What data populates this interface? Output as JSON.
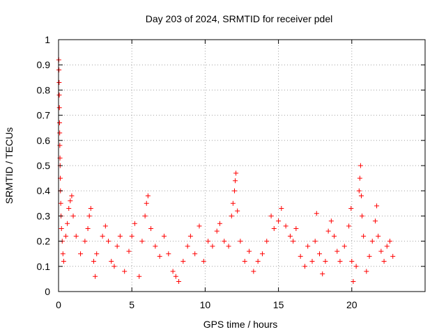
{
  "chart_data": {
    "type": "scatter",
    "title": "Day 203 of 2024, SRMTID for receiver pdel",
    "xlabel": "GPS time / hours",
    "ylabel": "SRMTID / TECUs",
    "xlim": [
      0,
      25
    ],
    "ylim": [
      0,
      1
    ],
    "xticks": [
      0,
      5,
      10,
      15,
      20
    ],
    "yticks": [
      0,
      0.1,
      0.2,
      0.3,
      0.4,
      0.5,
      0.6,
      0.7,
      0.8,
      0.9,
      1
    ],
    "xtick_labels": [
      "0",
      "5",
      "10",
      "15",
      "20"
    ],
    "ytick_labels": [
      "0",
      "0.1",
      "0.2",
      "0.3",
      "0.4",
      "0.5",
      "0.6",
      "0.7",
      "0.8",
      "0.9",
      "1"
    ],
    "grid": true,
    "marker": "+",
    "color": "#ff0000",
    "series": [
      {
        "name": "SRMTID",
        "points": [
          [
            0.02,
            0.92
          ],
          [
            0.03,
            0.88
          ],
          [
            0.04,
            0.83
          ],
          [
            0.05,
            0.78
          ],
          [
            0.06,
            0.73
          ],
          [
            0.07,
            0.67
          ],
          [
            0.08,
            0.63
          ],
          [
            0.09,
            0.58
          ],
          [
            0.1,
            0.53
          ],
          [
            0.11,
            0.5
          ],
          [
            0.12,
            0.45
          ],
          [
            0.13,
            0.4
          ],
          [
            0.15,
            0.35
          ],
          [
            0.17,
            0.3
          ],
          [
            0.2,
            0.25
          ],
          [
            0.25,
            0.2
          ],
          [
            0.3,
            0.15
          ],
          [
            0.35,
            0.12
          ],
          [
            0.5,
            0.22
          ],
          [
            0.6,
            0.27
          ],
          [
            0.7,
            0.33
          ],
          [
            0.8,
            0.36
          ],
          [
            0.9,
            0.38
          ],
          [
            1.0,
            0.3
          ],
          [
            1.2,
            0.22
          ],
          [
            1.5,
            0.15
          ],
          [
            1.8,
            0.2
          ],
          [
            2.0,
            0.25
          ],
          [
            2.1,
            0.3
          ],
          [
            2.2,
            0.33
          ],
          [
            2.4,
            0.12
          ],
          [
            2.5,
            0.06
          ],
          [
            2.6,
            0.15
          ],
          [
            3.0,
            0.22
          ],
          [
            3.2,
            0.26
          ],
          [
            3.4,
            0.2
          ],
          [
            3.6,
            0.12
          ],
          [
            3.8,
            0.1
          ],
          [
            4.0,
            0.18
          ],
          [
            4.2,
            0.22
          ],
          [
            4.5,
            0.08
          ],
          [
            4.8,
            0.16
          ],
          [
            5.0,
            0.22
          ],
          [
            5.2,
            0.27
          ],
          [
            5.5,
            0.06
          ],
          [
            5.7,
            0.2
          ],
          [
            5.9,
            0.3
          ],
          [
            6.0,
            0.35
          ],
          [
            6.1,
            0.38
          ],
          [
            6.3,
            0.25
          ],
          [
            6.6,
            0.18
          ],
          [
            6.9,
            0.14
          ],
          [
            7.2,
            0.22
          ],
          [
            7.5,
            0.15
          ],
          [
            7.8,
            0.08
          ],
          [
            8.0,
            0.06
          ],
          [
            8.2,
            0.04
          ],
          [
            8.5,
            0.12
          ],
          [
            8.8,
            0.18
          ],
          [
            9.0,
            0.22
          ],
          [
            9.3,
            0.15
          ],
          [
            9.6,
            0.26
          ],
          [
            9.9,
            0.12
          ],
          [
            10.2,
            0.2
          ],
          [
            10.5,
            0.18
          ],
          [
            10.8,
            0.24
          ],
          [
            11.0,
            0.27
          ],
          [
            11.3,
            0.2
          ],
          [
            11.6,
            0.18
          ],
          [
            11.8,
            0.3
          ],
          [
            11.9,
            0.35
          ],
          [
            12.0,
            0.4
          ],
          [
            12.05,
            0.44
          ],
          [
            12.1,
            0.47
          ],
          [
            12.2,
            0.32
          ],
          [
            12.4,
            0.2
          ],
          [
            12.7,
            0.12
          ],
          [
            13.0,
            0.16
          ],
          [
            13.3,
            0.08
          ],
          [
            13.6,
            0.12
          ],
          [
            13.9,
            0.15
          ],
          [
            14.2,
            0.2
          ],
          [
            14.5,
            0.3
          ],
          [
            14.7,
            0.25
          ],
          [
            15.0,
            0.28
          ],
          [
            15.2,
            0.33
          ],
          [
            15.5,
            0.26
          ],
          [
            15.8,
            0.22
          ],
          [
            16.0,
            0.2
          ],
          [
            16.2,
            0.25
          ],
          [
            16.5,
            0.14
          ],
          [
            16.8,
            0.1
          ],
          [
            17.0,
            0.18
          ],
          [
            17.3,
            0.12
          ],
          [
            17.5,
            0.2
          ],
          [
            17.6,
            0.31
          ],
          [
            17.8,
            0.15
          ],
          [
            18.0,
            0.07
          ],
          [
            18.2,
            0.12
          ],
          [
            18.4,
            0.24
          ],
          [
            18.6,
            0.28
          ],
          [
            18.8,
            0.22
          ],
          [
            19.0,
            0.16
          ],
          [
            19.2,
            0.12
          ],
          [
            19.5,
            0.18
          ],
          [
            19.8,
            0.26
          ],
          [
            19.95,
            0.33
          ],
          [
            20.0,
            0.12
          ],
          [
            20.1,
            0.04
          ],
          [
            20.3,
            0.1
          ],
          [
            20.5,
            0.4
          ],
          [
            20.55,
            0.45
          ],
          [
            20.6,
            0.5
          ],
          [
            20.65,
            0.38
          ],
          [
            20.7,
            0.3
          ],
          [
            20.8,
            0.22
          ],
          [
            21.0,
            0.08
          ],
          [
            21.2,
            0.14
          ],
          [
            21.4,
            0.2
          ],
          [
            21.6,
            0.28
          ],
          [
            21.7,
            0.34
          ],
          [
            21.8,
            0.22
          ],
          [
            22.0,
            0.16
          ],
          [
            22.2,
            0.12
          ],
          [
            22.4,
            0.18
          ],
          [
            22.6,
            0.2
          ],
          [
            22.8,
            0.14
          ]
        ]
      }
    ]
  }
}
